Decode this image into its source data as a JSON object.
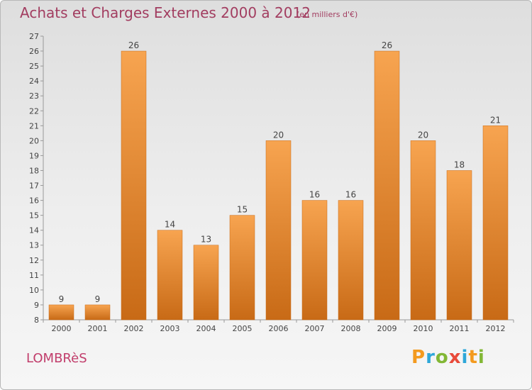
{
  "header": {
    "title": "Achats et Charges Externes 2000 à 2012",
    "subtitle": "(en milliers d'€)"
  },
  "footer": {
    "commune": "LOMBRèS",
    "logo": "Proxiti",
    "logo_colors": [
      "#f39a1f",
      "#2ea7d9",
      "#82b735",
      "#e84a3a",
      "#2ea7d9",
      "#f39a1f",
      "#82b735"
    ]
  },
  "colors": {
    "bar_light": "#f7a450",
    "bar_dark": "#c86a16",
    "title": "#a23d60"
  },
  "chart_data": {
    "type": "bar",
    "categories": [
      "2000",
      "2001",
      "2002",
      "2003",
      "2004",
      "2005",
      "2006",
      "2007",
      "2008",
      "2009",
      "2010",
      "2011",
      "2012"
    ],
    "values": [
      9,
      9,
      26,
      14,
      13,
      15,
      20,
      16,
      16,
      26,
      20,
      18,
      21
    ],
    "title": "Achats et Charges Externes 2000 à 2012",
    "xlabel": "",
    "ylabel": "",
    "ylim": [
      8,
      27
    ],
    "yticks": [
      8,
      9,
      10,
      11,
      12,
      13,
      14,
      15,
      16,
      17,
      18,
      19,
      20,
      21,
      22,
      23,
      24,
      25,
      26,
      27
    ],
    "grid": false,
    "legend": "none"
  }
}
